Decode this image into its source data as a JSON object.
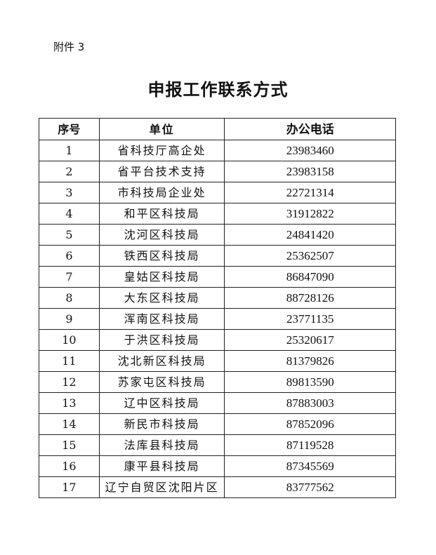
{
  "attachment_label": "附件 3",
  "title": "申报工作联系方式",
  "table": {
    "headers": [
      "序号",
      "单位",
      "办公电话"
    ],
    "rows": [
      [
        "1",
        "省科技厅高企处",
        "23983460"
      ],
      [
        "2",
        "省平台技术支持",
        "23983158"
      ],
      [
        "3",
        "市科技局企业处",
        "22721314"
      ],
      [
        "4",
        "和平区科技局",
        "31912822"
      ],
      [
        "5",
        "沈河区科技局",
        "24841420"
      ],
      [
        "6",
        "铁西区科技局",
        "25362507"
      ],
      [
        "7",
        "皇姑区科技局",
        "86847090"
      ],
      [
        "8",
        "大东区科技局",
        "88728126"
      ],
      [
        "9",
        "浑南区科技局",
        "23771135"
      ],
      [
        "10",
        "于洪区科技局",
        "25320617"
      ],
      [
        "11",
        "沈北新区科技局",
        "81379826"
      ],
      [
        "12",
        "苏家屯区科技局",
        "89813590"
      ],
      [
        "13",
        "辽中区科技局",
        "87883003"
      ],
      [
        "14",
        "新民市科技局",
        "87852096"
      ],
      [
        "15",
        "法库县科技局",
        "87119528"
      ],
      [
        "16",
        "康平县科技局",
        "87345569"
      ],
      [
        "17",
        "辽宁自贸区沈阳片区",
        "83777562"
      ]
    ]
  }
}
